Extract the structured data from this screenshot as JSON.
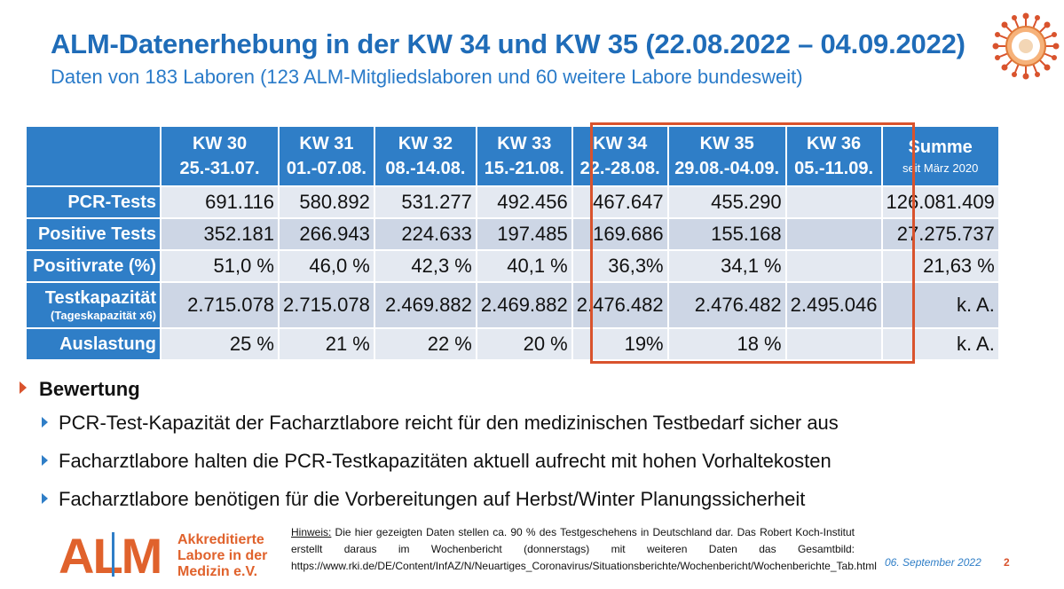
{
  "title": "ALM-Datenerhebung in der KW 34 und KW 35 (22.08.2022 – 04.09.2022)",
  "subtitle": "Daten von 183 Laboren (123 ALM-Mitgliedslaboren und 60 weitere Labore bundesweit)",
  "table": {
    "headers": [
      {
        "kw": "KW 30",
        "range": "25.-31.07."
      },
      {
        "kw": "KW 31",
        "range": "01.-07.08."
      },
      {
        "kw": "KW 32",
        "range": "08.-14.08."
      },
      {
        "kw": "KW 33",
        "range": "15.-21.08."
      },
      {
        "kw": "KW 34",
        "range": "22.-28.08."
      },
      {
        "kw": "KW 35",
        "range": "29.08.-04.09."
      },
      {
        "kw": "KW 36",
        "range": "05.-11.09."
      }
    ],
    "sum_header": "Summe",
    "sum_sub": "seit März 2020",
    "rows": [
      {
        "label": "PCR-Tests",
        "values": [
          "691.116",
          "580.892",
          "531.277",
          "492.456",
          "467.647",
          "455.290",
          ""
        ],
        "sum": "126.081.409"
      },
      {
        "label": "Positive Tests",
        "values": [
          "352.181",
          "266.943",
          "224.633",
          "197.485",
          "169.686",
          "155.168",
          ""
        ],
        "sum": "27.275.737"
      },
      {
        "label": "Positivrate (%)",
        "values": [
          "51,0 %",
          "46,0 %",
          "42,3 %",
          "40,1 %",
          "36,3%",
          "34,1 %",
          ""
        ],
        "sum": "21,63 %"
      },
      {
        "label": "Testkapazität",
        "note": "(Tageskapazität x6)",
        "values": [
          "2.715.078",
          "2.715.078",
          "2.469.882",
          "2.469.882",
          "2.476.482",
          "2.476.482",
          "2.495.046"
        ],
        "sum": "k. A."
      },
      {
        "label": "Auslastung",
        "values": [
          "25 %",
          "21 %",
          "22 %",
          "20 %",
          "19%",
          "18 %",
          ""
        ],
        "sum": "k. A."
      }
    ]
  },
  "bewertung": {
    "heading": "Bewertung",
    "items": [
      "PCR-Test-Kapazität der Facharztlabore reicht für den medizinischen Testbedarf sicher aus",
      "Facharztlabore halten die PCR-Testkapazitäten aktuell aufrecht mit hohen Vorhaltekosten",
      "Facharztlabore benötigen für die Vorbereitungen auf Herbst/Winter Planungssicherheit"
    ]
  },
  "logo": {
    "letters": "ALM",
    "line1": "Akkreditierte",
    "line2": "Labore in der",
    "line3": "Medizin e.V."
  },
  "hint": {
    "label": "Hinweis:",
    "text": " Die hier gezeigten Daten stellen ca. 90 % des Testgeschehens in Deutschland dar. Das Robert Koch-Institut erstellt daraus im Wochenbericht (donnerstags) mit weiteren Daten das Gesamtbild: https://www.rki.de/DE/Content/InfAZ/N/Neuartiges_Coronavirus/Situationsberichte/Wochenbericht/Wochenberichte_Tab.html"
  },
  "footer": {
    "date": "06. September 2022",
    "page": "2"
  },
  "colors": {
    "brand_blue": "#2f7ec7",
    "accent_orange": "#d9532d"
  }
}
